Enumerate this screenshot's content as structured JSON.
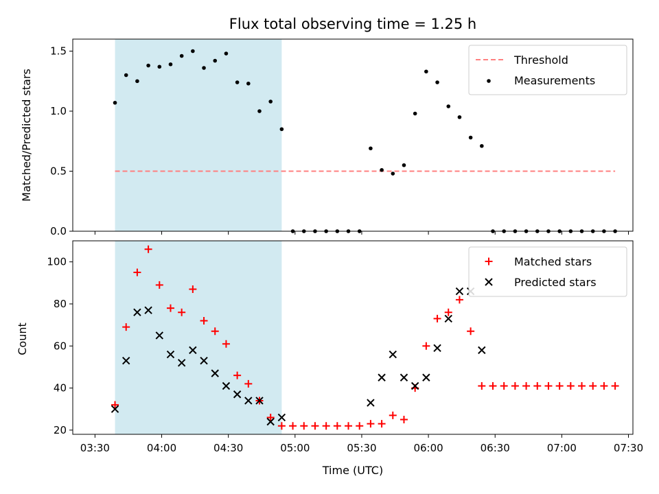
{
  "chart_data": [
    {
      "type": "scatter",
      "title": "Flux total observing time = 1.25 h",
      "ylabel": "Matched/Predicted stars",
      "xlabel": "",
      "ylim": [
        0,
        1.6
      ],
      "yticks": [
        0.0,
        0.5,
        1.0,
        1.5
      ],
      "ytick_labels": [
        "0.0",
        "0.5",
        "1.0",
        "1.5"
      ],
      "xlim": [
        "03:20",
        "07:32"
      ],
      "xticks": [
        "03:30",
        "04:00",
        "04:30",
        "05:00",
        "05:30",
        "06:00",
        "06:30",
        "07:00",
        "07:30"
      ],
      "highlight_span": [
        "03:39",
        "04:54"
      ],
      "highlight_color": "#add8e6",
      "legend_position": "upper-right",
      "threshold": {
        "name": "Threshold",
        "y": 0.5,
        "x_range": [
          "03:39",
          "07:24"
        ],
        "color": "#ff7f7f"
      },
      "series": [
        {
          "name": "Measurements",
          "marker": "dot",
          "color": "#000000",
          "x": [
            "03:39",
            "03:44",
            "03:49",
            "03:54",
            "03:59",
            "04:04",
            "04:09",
            "04:14",
            "04:19",
            "04:24",
            "04:29",
            "04:34",
            "04:39",
            "04:44",
            "04:49",
            "04:54",
            "04:59",
            "05:04",
            "05:09",
            "05:14",
            "05:19",
            "05:24",
            "05:29",
            "05:34",
            "05:39",
            "05:44",
            "05:49",
            "05:54",
            "05:59",
            "06:04",
            "06:09",
            "06:14",
            "06:19",
            "06:24",
            "06:29",
            "06:34",
            "06:39",
            "06:44",
            "06:49",
            "06:54",
            "06:59",
            "07:04",
            "07:09",
            "07:14",
            "07:19",
            "07:24"
          ],
          "y": [
            1.07,
            1.3,
            1.25,
            1.38,
            1.37,
            1.39,
            1.46,
            1.5,
            1.36,
            1.42,
            1.48,
            1.24,
            1.23,
            1.0,
            1.08,
            0.85,
            0.0,
            0.0,
            0.0,
            0.0,
            0.0,
            0.0,
            0.0,
            0.69,
            0.51,
            0.48,
            0.55,
            0.98,
            1.33,
            1.24,
            1.04,
            0.95,
            0.78,
            0.71,
            0.0,
            0.0,
            0.0,
            0.0,
            0.0,
            0.0,
            0.0,
            0.0,
            0.0,
            0.0,
            0.0,
            0.0
          ]
        }
      ]
    },
    {
      "type": "scatter",
      "title": "",
      "ylabel": "Count",
      "xlabel": "Time (UTC)",
      "ylim": [
        18,
        110
      ],
      "yticks": [
        20,
        40,
        60,
        80,
        100
      ],
      "ytick_labels": [
        "20",
        "40",
        "60",
        "80",
        "100"
      ],
      "xlim": [
        "03:20",
        "07:32"
      ],
      "xticks": [
        "03:30",
        "04:00",
        "04:30",
        "05:00",
        "05:30",
        "06:00",
        "06:30",
        "07:00",
        "07:30"
      ],
      "xtick_labels": [
        "03:30",
        "04:00",
        "04:30",
        "05:00",
        "05:30",
        "06:00",
        "06:30",
        "07:00",
        "07:30"
      ],
      "highlight_span": [
        "03:39",
        "04:54"
      ],
      "highlight_color": "#add8e6",
      "legend_position": "upper-right",
      "series": [
        {
          "name": "Matched stars",
          "marker": "plus",
          "color": "#ff0000",
          "x": [
            "03:39",
            "03:44",
            "03:49",
            "03:54",
            "03:59",
            "04:04",
            "04:09",
            "04:14",
            "04:19",
            "04:24",
            "04:29",
            "04:34",
            "04:39",
            "04:44",
            "04:49",
            "04:54",
            "04:59",
            "05:04",
            "05:09",
            "05:14",
            "05:19",
            "05:24",
            "05:29",
            "05:34",
            "05:39",
            "05:44",
            "05:49",
            "05:54",
            "05:59",
            "06:04",
            "06:09",
            "06:14",
            "06:19",
            "06:24",
            "06:29",
            "06:34",
            "06:39",
            "06:44",
            "06:49",
            "06:54",
            "06:59",
            "07:04",
            "07:09",
            "07:14",
            "07:19",
            "07:24"
          ],
          "y": [
            32,
            69,
            95,
            106,
            89,
            78,
            76,
            87,
            72,
            67,
            61,
            46,
            42,
            34,
            26,
            22,
            22,
            22,
            22,
            22,
            22,
            22,
            22,
            23,
            23,
            27,
            25,
            40,
            60,
            73,
            76,
            82,
            67,
            41,
            41,
            41,
            41,
            41,
            41,
            41,
            41,
            41,
            41,
            41,
            41,
            41
          ]
        },
        {
          "name": "Predicted stars",
          "marker": "x",
          "color": "#000000",
          "x": [
            "03:39",
            "03:44",
            "03:49",
            "03:54",
            "03:59",
            "04:04",
            "04:09",
            "04:14",
            "04:19",
            "04:24",
            "04:29",
            "04:34",
            "04:39",
            "04:44",
            "04:49",
            "04:54",
            "05:34",
            "05:39",
            "05:44",
            "05:49",
            "05:54",
            "05:59",
            "06:04",
            "06:09",
            "06:14",
            "06:19",
            "06:24"
          ],
          "y": [
            30,
            53,
            76,
            77,
            65,
            56,
            52,
            58,
            53,
            47,
            41,
            37,
            34,
            34,
            24,
            26,
            33,
            45,
            56,
            45,
            41,
            45,
            59,
            73,
            86,
            86,
            58
          ]
        }
      ]
    }
  ]
}
